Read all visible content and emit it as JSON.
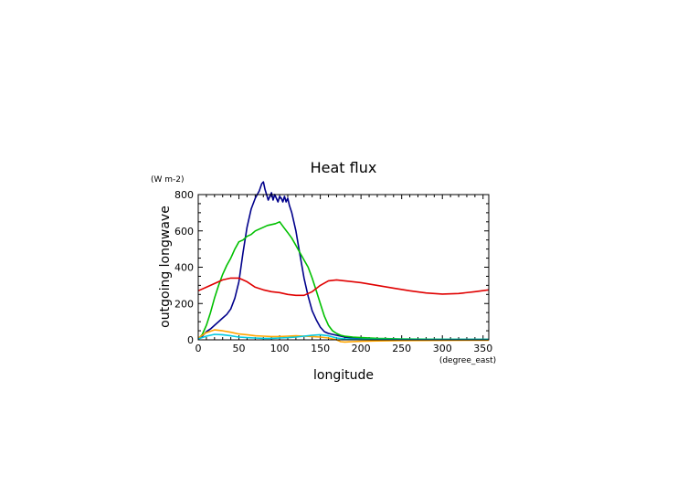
{
  "chart_data": {
    "type": "line",
    "title": "Heat flux",
    "xlabel": "longitude",
    "xunit": "(degree_east)",
    "ylabel": "outgoing longwave",
    "yunit": "(W m-2)",
    "xlim": [
      0,
      357
    ],
    "ylim": [
      0,
      800
    ],
    "xticks": [
      0,
      50,
      100,
      150,
      200,
      250,
      300,
      350
    ],
    "yticks": [
      0,
      200,
      400,
      600,
      800
    ],
    "grid": false,
    "series": [
      {
        "color": "#00008b",
        "x": [
          0,
          5,
          10,
          15,
          20,
          25,
          30,
          35,
          40,
          45,
          50,
          55,
          60,
          65,
          70,
          75,
          78,
          80,
          82,
          84,
          86,
          88,
          90,
          92,
          94,
          96,
          98,
          100,
          102,
          104,
          106,
          108,
          110,
          112,
          115,
          120,
          125,
          130,
          135,
          140,
          145,
          150,
          155,
          160,
          165,
          170,
          175,
          180,
          185,
          190,
          200,
          210,
          220,
          230,
          250,
          300,
          357
        ],
        "y": [
          5,
          20,
          45,
          60,
          80,
          100,
          120,
          140,
          170,
          230,
          320,
          480,
          620,
          720,
          780,
          820,
          860,
          870,
          830,
          800,
          770,
          790,
          810,
          770,
          800,
          780,
          760,
          790,
          780,
          760,
          790,
          760,
          780,
          740,
          700,
          600,
          470,
          340,
          240,
          160,
          110,
          70,
          45,
          35,
          30,
          25,
          20,
          15,
          12,
          10,
          8,
          6,
          5,
          4,
          3,
          2,
          2
        ]
      },
      {
        "color": "#00c000",
        "x": [
          0,
          5,
          10,
          15,
          20,
          25,
          30,
          35,
          40,
          45,
          50,
          55,
          60,
          65,
          70,
          75,
          80,
          85,
          90,
          95,
          100,
          105,
          110,
          115,
          120,
          125,
          130,
          135,
          140,
          145,
          150,
          155,
          160,
          165,
          170,
          175,
          180,
          190,
          200,
          220,
          250,
          300,
          357
        ],
        "y": [
          5,
          30,
          80,
          150,
          230,
          300,
          360,
          410,
          450,
          500,
          540,
          550,
          570,
          580,
          600,
          610,
          620,
          630,
          635,
          640,
          650,
          620,
          590,
          560,
          520,
          480,
          440,
          400,
          340,
          270,
          200,
          130,
          80,
          50,
          35,
          25,
          20,
          15,
          12,
          8,
          5,
          3,
          2
        ]
      },
      {
        "color": "#e00000",
        "x": [
          0,
          10,
          20,
          30,
          40,
          50,
          60,
          70,
          80,
          90,
          100,
          110,
          120,
          130,
          140,
          150,
          160,
          170,
          180,
          200,
          220,
          240,
          260,
          280,
          300,
          320,
          340,
          357
        ],
        "y": [
          270,
          290,
          310,
          330,
          340,
          340,
          320,
          290,
          275,
          265,
          260,
          250,
          245,
          245,
          265,
          300,
          325,
          330,
          325,
          315,
          300,
          285,
          270,
          258,
          252,
          255,
          265,
          275
        ]
      },
      {
        "color": "#ffa500",
        "x": [
          0,
          10,
          20,
          30,
          40,
          50,
          60,
          70,
          80,
          90,
          100,
          110,
          120,
          130,
          140,
          150,
          160,
          170,
          175,
          180,
          190,
          200,
          220,
          250,
          300,
          357
        ],
        "y": [
          10,
          40,
          55,
          50,
          42,
          32,
          28,
          22,
          20,
          18,
          18,
          20,
          22,
          20,
          18,
          15,
          10,
          0,
          -10,
          -12,
          -10,
          -8,
          -6,
          -4,
          -3,
          -2
        ]
      },
      {
        "color": "#00c8e0",
        "x": [
          0,
          10,
          20,
          30,
          40,
          50,
          60,
          70,
          80,
          90,
          100,
          110,
          120,
          130,
          140,
          150,
          160,
          170,
          180,
          200,
          250,
          300,
          357
        ],
        "y": [
          5,
          20,
          30,
          28,
          22,
          15,
          12,
          10,
          8,
          8,
          10,
          12,
          15,
          20,
          25,
          28,
          22,
          10,
          5,
          3,
          2,
          2,
          2
        ]
      }
    ]
  }
}
